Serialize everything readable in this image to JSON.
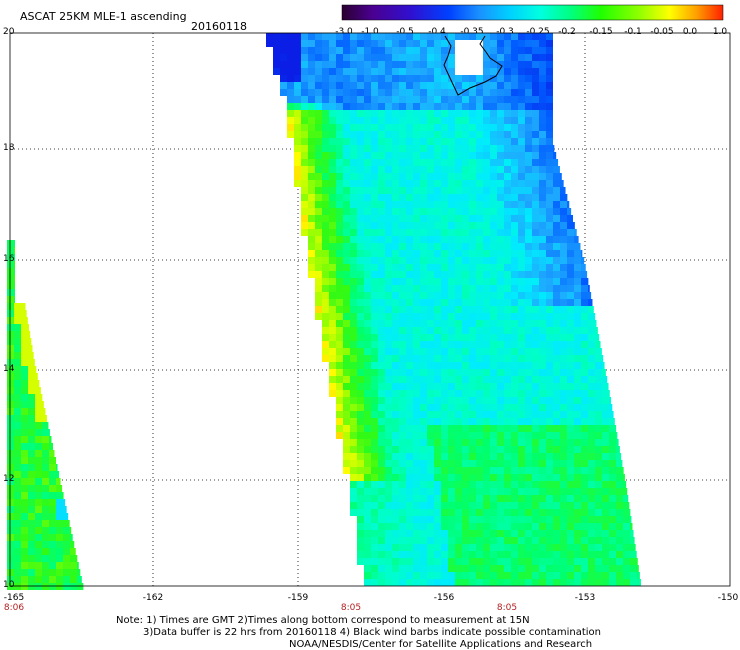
{
  "header": {
    "title": "ASCAT 25KM MLE-1 ascending",
    "date": "20160118"
  },
  "colorbar": {
    "labels": [
      "-3.0",
      "-1.0",
      "-0.5",
      "-0.4",
      "-0.35",
      "-0.3",
      "-0.25",
      "-0.2",
      "-0.15",
      "-0.1",
      "-0.05",
      "0.0",
      "1.0"
    ],
    "colors": [
      "#2a0030",
      "#4a0090",
      "#3010d0",
      "#0040ff",
      "#1a90ff",
      "#00d0ff",
      "#00ffe0",
      "#00ff80",
      "#20ff00",
      "#90ff00",
      "#ffff00",
      "#ffa000",
      "#ff2000"
    ]
  },
  "map": {
    "lat_labels": [
      "20",
      "18",
      "16",
      "14",
      "12",
      "10"
    ],
    "lon_labels": [
      "-165",
      "-162",
      "-159",
      "-156",
      "-153",
      "-150"
    ],
    "time_labels": [
      "8:06",
      "8:05",
      "8:05"
    ]
  },
  "footer": {
    "line1": "Note: 1) Times are GMT 2)Times along bottom correspond to measurement at 15N",
    "line2": "3)Data buffer is 22 hrs from 20160118 4) Black wind barbs indicate possible contamination",
    "line3": "NOAA/NESDIS/Center for Satellite Applications and Research"
  }
}
